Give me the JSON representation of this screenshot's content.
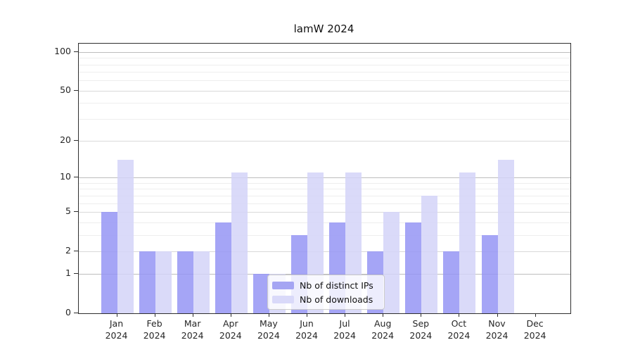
{
  "title": "lamW 2024",
  "chart_data": {
    "type": "bar",
    "title": "lamW 2024",
    "categories": [
      "Jan 2024",
      "Feb 2024",
      "Mar 2024",
      "Apr 2024",
      "May 2024",
      "Jun 2024",
      "Jul 2024",
      "Aug 2024",
      "Sep 2024",
      "Oct 2024",
      "Nov 2024",
      "Dec 2024"
    ],
    "x_tick_months": [
      "Jan",
      "Feb",
      "Mar",
      "Apr",
      "May",
      "Jun",
      "Jul",
      "Aug",
      "Sep",
      "Oct",
      "Nov",
      "Dec"
    ],
    "x_tick_year": "2024",
    "series": [
      {
        "name": "Nb of distinct IPs",
        "color": "#9595f5",
        "legend_color": "#a5a5f3",
        "values": [
          5,
          2,
          2,
          4,
          1,
          3,
          4,
          2,
          4,
          2,
          3,
          0
        ]
      },
      {
        "name": "Nb of downloads",
        "color": "#d3d3f8",
        "legend_color": "#d9d9f9",
        "values": [
          14,
          2,
          2,
          11,
          1,
          11,
          11,
          5,
          7,
          11,
          14,
          0
        ]
      }
    ],
    "y_ticks": [
      0,
      1,
      2,
      5,
      10,
      20,
      50,
      100
    ],
    "y_minor_ticks": [
      3,
      4,
      6,
      7,
      8,
      9,
      30,
      40,
      60,
      70,
      80,
      90
    ],
    "scale": "log1p",
    "ylim": [
      0,
      115
    ],
    "grid": "on",
    "legend_position": "lower center",
    "colors": {
      "grid_major_decade": "#bdbdbd",
      "grid_major": "#d9d9d9",
      "grid_minor": "#eeeeee",
      "axis": "#2e2e2e"
    }
  }
}
